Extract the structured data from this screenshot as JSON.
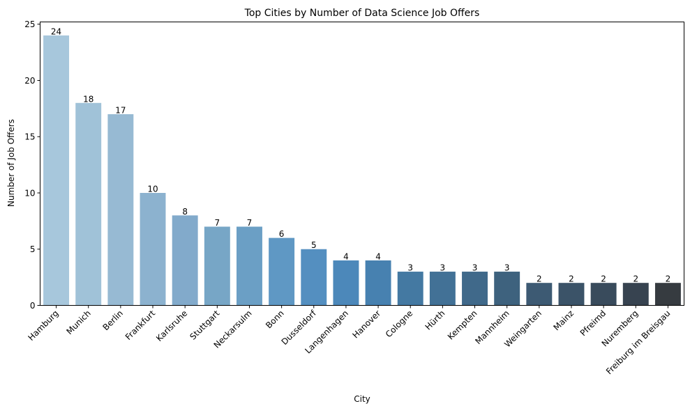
{
  "chart_data": {
    "type": "bar",
    "title": "Top Cities by Number of Data Science Job Offers",
    "xlabel": "City",
    "ylabel": "Number of Job Offers",
    "ylim": [
      0,
      25.2
    ],
    "yticks": [
      0,
      5,
      10,
      15,
      20,
      25
    ],
    "grid": false,
    "categories": [
      "Hamburg",
      "Munich",
      "Berlin",
      "Frankfurt",
      "Karlsruhe",
      "Stuttgart",
      "Neckarsulm",
      "Bonn",
      "Dusseldorf",
      "Langenhagen",
      "Hanover",
      "Cologne",
      "Hürth",
      "Kempten",
      "Mannheim",
      "Weingarten",
      "Mainz",
      "Pfreimd",
      "Nuremberg",
      "Freiburg im Breisgau"
    ],
    "values": [
      24,
      18,
      17,
      10,
      8,
      7,
      7,
      6,
      5,
      4,
      4,
      3,
      3,
      3,
      3,
      2,
      2,
      2,
      2,
      2
    ],
    "colors": [
      "#a7c7dc",
      "#a0c2d8",
      "#97bad3",
      "#8cb2cf",
      "#82aacb",
      "#77a6c6",
      "#6b9fc5",
      "#5f98c4",
      "#548fc0",
      "#4c88ba",
      "#4781b0",
      "#4479a2",
      "#427196",
      "#40698a",
      "#3e627e",
      "#3d5a73",
      "#3b5368",
      "#394b5c",
      "#374350",
      "#363b40"
    ]
  }
}
